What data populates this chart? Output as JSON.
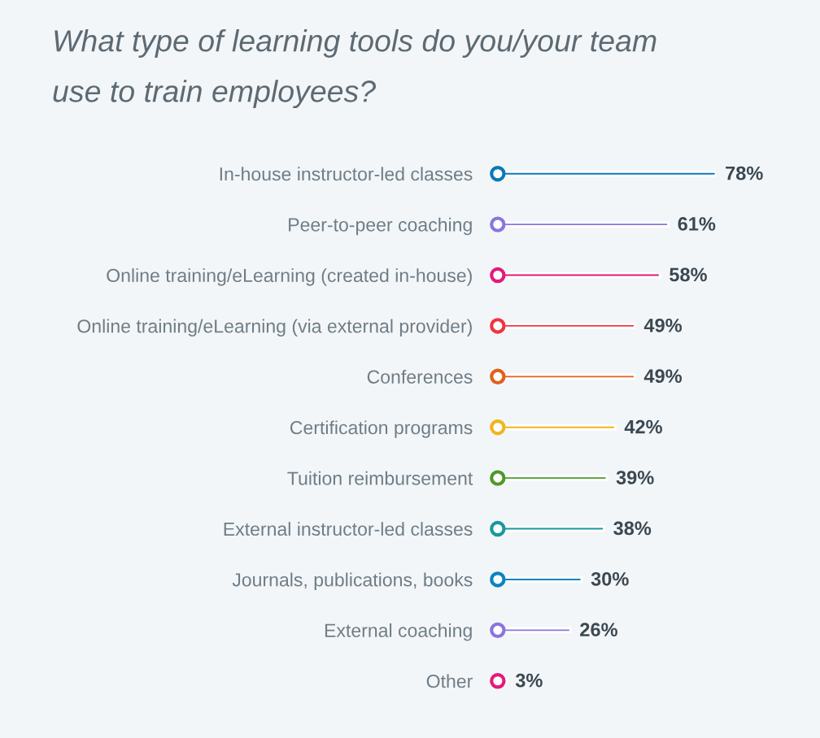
{
  "chart_data": {
    "type": "bar",
    "orientation": "horizontal",
    "title": "What type of learning tools do you/your team use to train employees?",
    "categories": [
      "In-house instructor-led classes",
      "Peer-to-peer coaching",
      "Online training/eLearning (created in-house)",
      "Online training/eLearning (via external provider)",
      "Conferences",
      "Certification programs",
      "Tuition reimbursement",
      "External instructor-led classes",
      "Journals, publications, books",
      "External coaching",
      "Other"
    ],
    "values": [
      78,
      61,
      58,
      49,
      49,
      42,
      39,
      38,
      30,
      26,
      3
    ],
    "value_labels": [
      "78%",
      "61%",
      "58%",
      "49%",
      "49%",
      "42%",
      "39%",
      "38%",
      "30%",
      "26%",
      "3%"
    ],
    "colors": [
      "#0a7ab8",
      "#8a74e0",
      "#e3197b",
      "#f0343f",
      "#e2601a",
      "#f0b51c",
      "#4b9a2a",
      "#1a979c",
      "#0a84c0",
      "#8a74e0",
      "#e3197b"
    ],
    "tick_labels": "y"
  }
}
